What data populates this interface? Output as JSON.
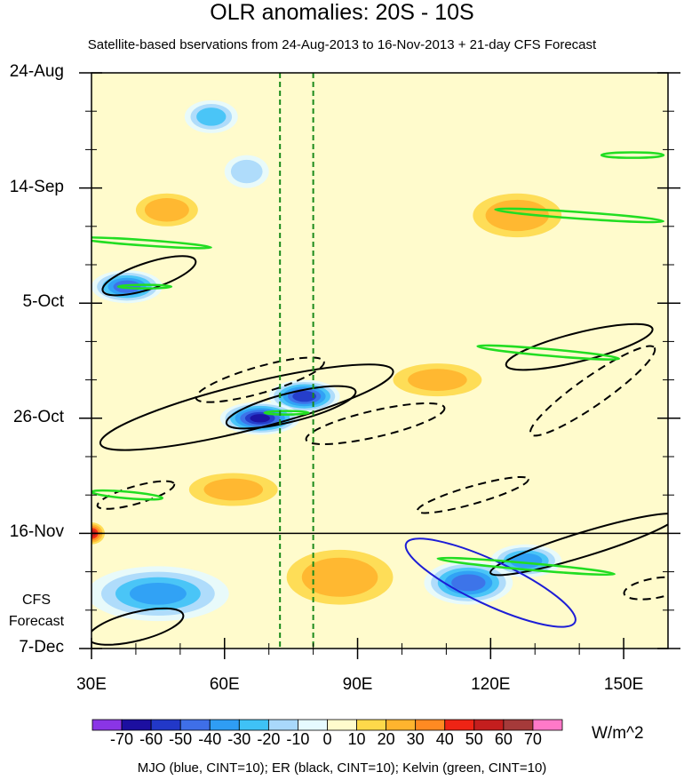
{
  "chart_data": {
    "type": "heatmap",
    "title": "OLR anomalies: 20S - 10S",
    "subtitle": "Satellite-based bservations from 24-Aug-2013 to 16-Nov-2013 + 21-day CFS Forecast",
    "x_axis": {
      "range": [
        30,
        160
      ],
      "tick_values": [
        30,
        60,
        90,
        120,
        150
      ],
      "tick_labels": [
        "30E",
        "60E",
        "90E",
        "120E",
        "150E"
      ]
    },
    "y_axis": {
      "direction": "time increasing downward",
      "tick_days": [
        0,
        21,
        42,
        63,
        84,
        105
      ],
      "tick_labels": [
        "24-Aug",
        "14-Sep",
        "5-Oct",
        "26-Oct",
        "16-Nov",
        "7-Dec"
      ],
      "end_day": 105
    },
    "forecast_start_label": "16-Nov",
    "forecast_label": [
      "CFS",
      "Forecast"
    ],
    "reference_longitudes": [
      72.5,
      80
    ],
    "colorbar": {
      "tick_labels": [
        "-70",
        "-60",
        "-50",
        "-40",
        "-30",
        "-20",
        "-10",
        "0",
        "10",
        "20",
        "30",
        "40",
        "50",
        "60",
        "70"
      ],
      "colors": [
        "#8a35e6",
        "#1c0fa0",
        "#2238c8",
        "#3f6fe8",
        "#2f9df4",
        "#3fc2f6",
        "#a9d8fb",
        "#e6faff",
        "#fffbcc",
        "#fed94a",
        "#ffb42e",
        "#ff8a22",
        "#ee2415",
        "#c41e1e",
        "#a53a3a",
        "#ff79c8"
      ],
      "units": "W/m^2"
    },
    "anomalies": [
      {
        "lon": 57,
        "day": 8,
        "rl": 6,
        "rd": 3,
        "v": -35
      },
      {
        "lon": 65,
        "day": 18,
        "rl": 5,
        "rd": 3,
        "v": -25
      },
      {
        "lon": 38,
        "day": 39,
        "rl": 8,
        "rd": 3,
        "v": -55
      },
      {
        "lon": 78,
        "day": 59,
        "rl": 8,
        "rd": 3,
        "v": -65
      },
      {
        "lon": 68,
        "day": 63,
        "rl": 9,
        "rd": 3,
        "v": -70
      },
      {
        "lon": 115,
        "day": 93,
        "rl": 10,
        "rd": 4,
        "v": -55
      },
      {
        "lon": 128,
        "day": 89,
        "rl": 8,
        "rd": 3,
        "v": -45
      },
      {
        "lon": 45,
        "day": 95,
        "rl": 16,
        "rd": 5,
        "v": -40
      },
      {
        "lon": 30,
        "day": 84,
        "rl": 3,
        "rd": 2,
        "v": 50
      },
      {
        "lon": 47,
        "day": 25,
        "rl": 7,
        "rd": 3,
        "v": 25
      },
      {
        "lon": 126,
        "day": 26,
        "rl": 10,
        "rd": 4,
        "v": 25
      },
      {
        "lon": 62,
        "day": 76,
        "rl": 10,
        "rd": 3,
        "v": 20
      },
      {
        "lon": 86,
        "day": 92,
        "rl": 12,
        "rd": 5,
        "v": 25
      },
      {
        "lon": 108,
        "day": 56,
        "rl": 10,
        "rd": 3,
        "v": 20
      }
    ],
    "contours": [
      {
        "type": "ER",
        "sign": "positive",
        "lon": 43,
        "day": 37,
        "rl": 11,
        "rd": 2.4,
        "angle": -18
      },
      {
        "type": "ER",
        "sign": "positive",
        "lon": 65,
        "day": 61,
        "rl": 34,
        "rd": 4.2,
        "angle": -14
      },
      {
        "type": "ER",
        "sign": "positive",
        "lon": 75,
        "day": 61,
        "rl": 15,
        "rd": 2.6,
        "angle": -14
      },
      {
        "type": "ER",
        "sign": "negative",
        "lon": 68,
        "day": 56,
        "rl": 15,
        "rd": 2.4,
        "angle": -16
      },
      {
        "type": "ER",
        "sign": "negative",
        "lon": 94,
        "day": 64,
        "rl": 16,
        "rd": 2.4,
        "angle": -13
      },
      {
        "type": "ER",
        "sign": "negative",
        "lon": 40,
        "day": 77,
        "rl": 9,
        "rd": 1.6,
        "angle": -16
      },
      {
        "type": "ER",
        "sign": "negative",
        "lon": 116,
        "day": 77,
        "rl": 13,
        "rd": 1.6,
        "angle": -16
      },
      {
        "type": "ER",
        "sign": "positive",
        "lon": 140,
        "day": 50,
        "rl": 17,
        "rd": 2.6,
        "angle": -14
      },
      {
        "type": "ER",
        "sign": "negative",
        "lon": 143,
        "day": 58,
        "rl": 17,
        "rd": 2.6,
        "angle": -35
      },
      {
        "type": "ER",
        "sign": "positive",
        "lon": 141,
        "day": 86,
        "rl": 22,
        "rd": 2.2,
        "angle": -17
      },
      {
        "type": "ER",
        "sign": "positive",
        "lon": 40,
        "day": 101,
        "rl": 11,
        "rd": 2.6,
        "angle": -14
      },
      {
        "type": "ER",
        "sign": "negative",
        "lon": 157,
        "day": 94,
        "rl": 7,
        "rd": 1.8,
        "angle": -10
      },
      {
        "type": "MJO",
        "sign": "positive",
        "lon": 120,
        "day": 93,
        "rl": 21,
        "rd": 4.0,
        "angle": 25
      },
      {
        "type": "Kelvin",
        "sign": "positive",
        "lon": 42,
        "day": 31,
        "rl": 15,
        "rd": 0.5,
        "angle": 4
      },
      {
        "type": "Kelvin",
        "sign": "positive",
        "lon": 140,
        "day": 26,
        "rl": 19,
        "rd": 0.6,
        "angle": 4
      },
      {
        "type": "Kelvin",
        "sign": "positive",
        "lon": 152,
        "day": 15,
        "rl": 7,
        "rd": 0.5,
        "angle": 0
      },
      {
        "type": "Kelvin",
        "sign": "positive",
        "lon": 133,
        "day": 51,
        "rl": 16,
        "rd": 0.6,
        "angle": 5
      },
      {
        "type": "Kelvin",
        "sign": "positive",
        "lon": 128,
        "day": 90,
        "rl": 20,
        "rd": 0.6,
        "angle": 5
      },
      {
        "type": "Kelvin",
        "sign": "positive",
        "lon": 38,
        "day": 77,
        "rl": 8,
        "rd": 0.6,
        "angle": 5
      },
      {
        "type": "Kelvin",
        "sign": "positive",
        "lon": 42,
        "day": 39,
        "rl": 6,
        "rd": 0.3,
        "angle": 0
      },
      {
        "type": "Kelvin",
        "sign": "positive",
        "lon": 74,
        "day": 62,
        "rl": 5,
        "rd": 0.3,
        "angle": 0
      }
    ],
    "legend_note": "MJO (blue, CINT=10); ER (black, CINT=10); Kelvin (green, CINT=10)"
  }
}
